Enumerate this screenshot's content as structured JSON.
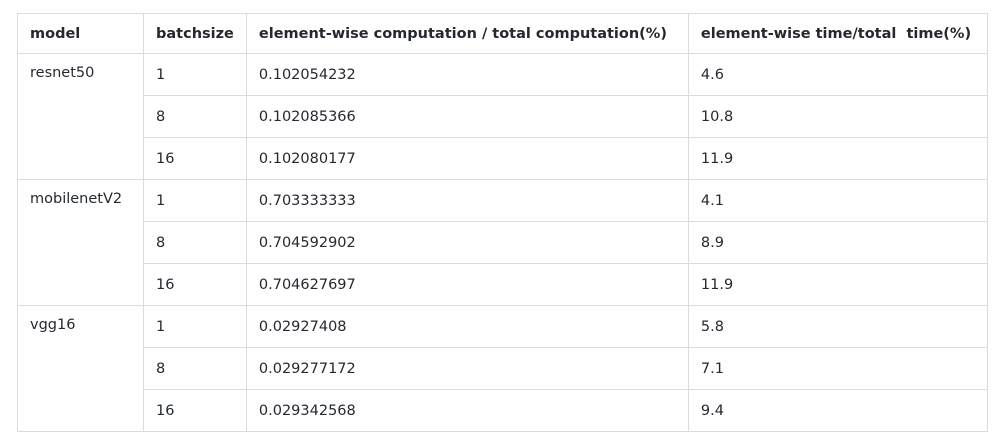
{
  "table": {
    "header": [
      "model",
      "batchsize",
      "element-wise computation / total computation(%)",
      "element-wise time/total  time(%)"
    ],
    "groups": [
      {
        "model": "resnet50",
        "rows": [
          [
            "1",
            "0.102054232",
            "4.6"
          ],
          [
            "8",
            "0.102085366",
            "10.8"
          ],
          [
            "16",
            "0.102080177",
            "11.9"
          ]
        ]
      },
      {
        "model": "mobilenetV2",
        "rows": [
          [
            "1",
            "0.703333333",
            "4.1"
          ],
          [
            "8",
            "0.704592902",
            "8.9"
          ],
          [
            "16",
            "0.704627697",
            "11.9"
          ]
        ]
      },
      {
        "model": "vgg16",
        "rows": [
          [
            "1",
            "0.02927408",
            "5.8"
          ],
          [
            "8",
            "0.029277172",
            "7.1"
          ],
          [
            "16",
            "0.029342568",
            "9.4"
          ]
        ]
      }
    ]
  }
}
